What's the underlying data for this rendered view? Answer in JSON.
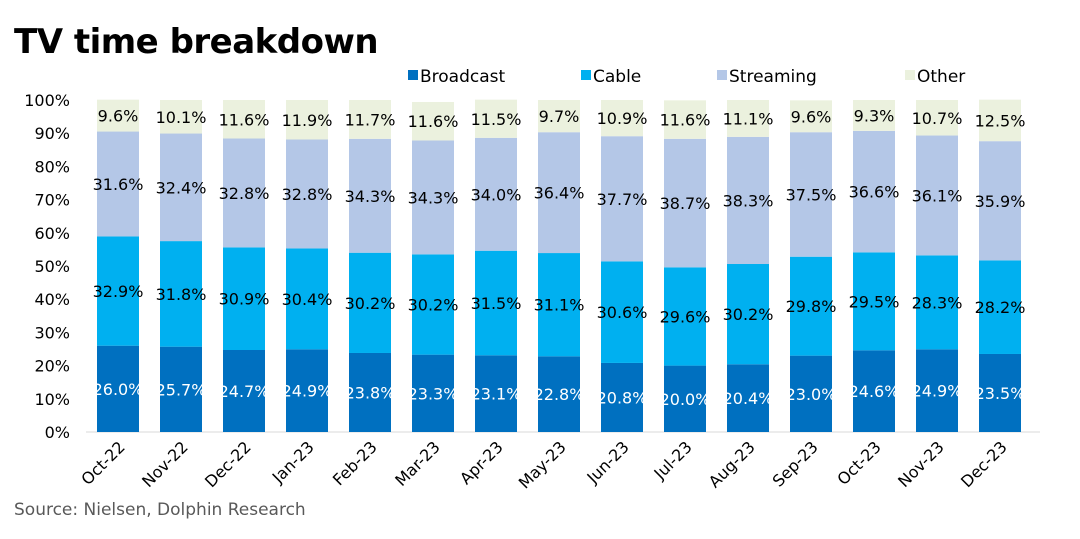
{
  "title": "TV time breakdown",
  "source": "Source:  Nielsen,  Dolphin Research",
  "chart_data": {
    "type": "bar",
    "stacked": true,
    "title": "TV time breakdown",
    "categories": [
      "Oct-22",
      "Nov-22",
      "Dec-22",
      "Jan-23",
      "Feb-23",
      "Mar-23",
      "Apr-23",
      "May-23",
      "Jun-23",
      "Jul-23",
      "Aug-23",
      "Sep-23",
      "Oct-23",
      "Nov-23",
      "Dec-23"
    ],
    "series": [
      {
        "name": "Broadcast",
        "color": "#0070C0",
        "label_color": "#ffffff",
        "values": [
          26.0,
          25.7,
          24.7,
          24.9,
          23.8,
          23.3,
          23.1,
          22.8,
          20.8,
          20.0,
          20.4,
          23.0,
          24.6,
          24.9,
          23.5
        ]
      },
      {
        "name": "Cable",
        "color": "#00B0F0",
        "label_color": "#000000",
        "values": [
          32.9,
          31.8,
          30.9,
          30.4,
          30.2,
          30.2,
          31.5,
          31.1,
          30.6,
          29.6,
          30.2,
          29.8,
          29.5,
          28.3,
          28.2
        ]
      },
      {
        "name": "Streaming",
        "color": "#B4C7E7",
        "label_color": "#000000",
        "values": [
          31.6,
          32.4,
          32.8,
          32.8,
          34.3,
          34.3,
          34.0,
          36.4,
          37.7,
          38.7,
          38.3,
          37.5,
          36.6,
          36.1,
          35.9
        ]
      },
      {
        "name": "Other",
        "color": "#EBF1DE",
        "label_color": "#000000",
        "values": [
          9.6,
          10.1,
          11.6,
          11.9,
          11.7,
          11.6,
          11.5,
          9.7,
          10.9,
          11.6,
          11.1,
          9.6,
          9.3,
          10.7,
          12.5
        ]
      }
    ],
    "ylim": [
      0,
      100
    ],
    "yticks": [
      "0%",
      "10%",
      "20%",
      "30%",
      "40%",
      "50%",
      "60%",
      "70%",
      "80%",
      "90%",
      "100%"
    ],
    "xlabel": "",
    "ylabel": "",
    "grid": false,
    "legend": "top"
  }
}
